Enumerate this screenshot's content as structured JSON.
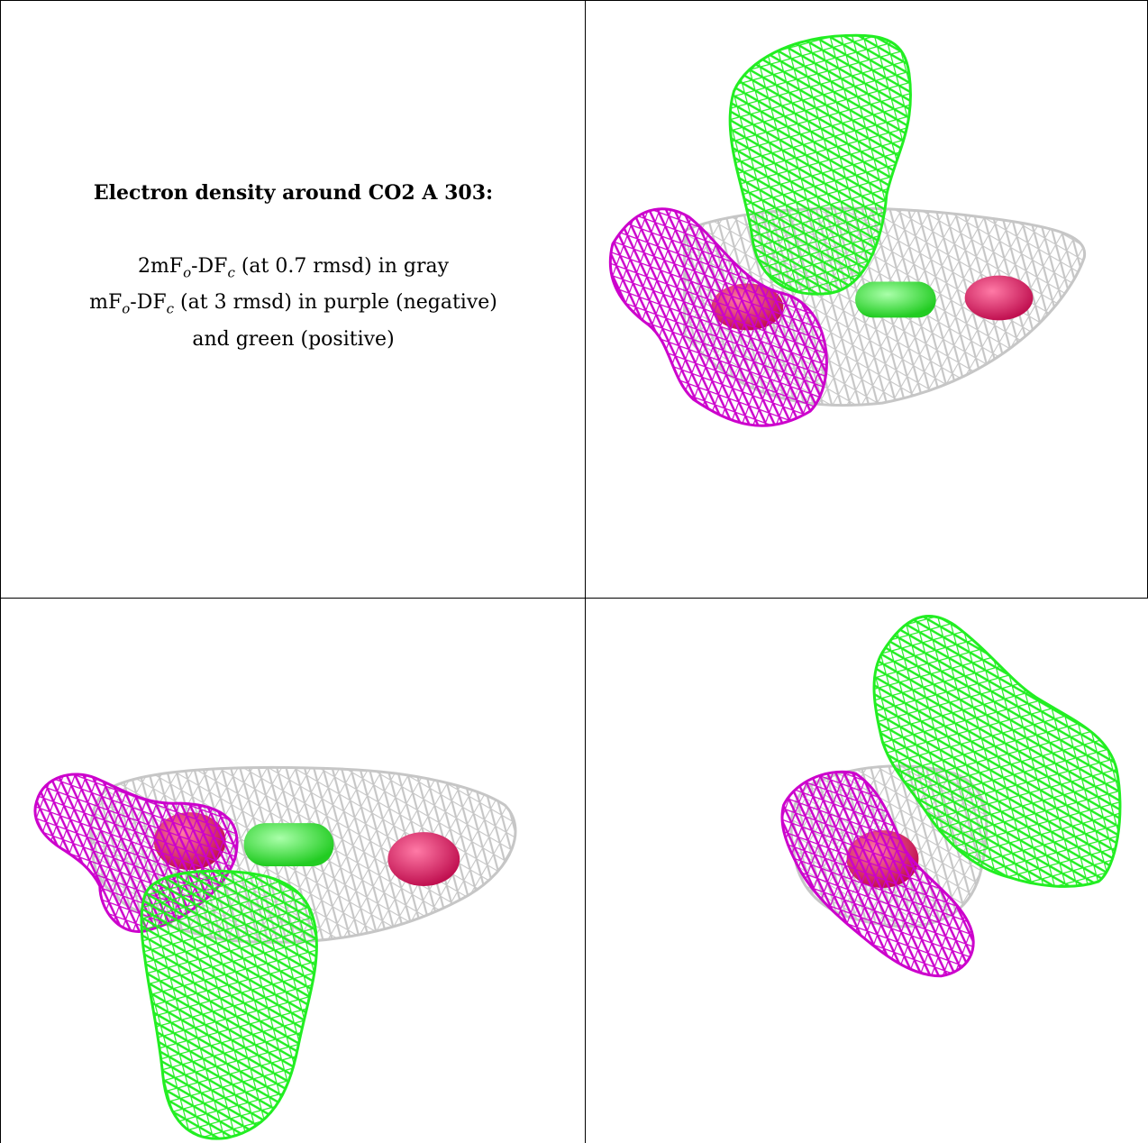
{
  "legend": {
    "title": "Electron density around CO2 A 303:",
    "line1_a": "2mF",
    "line1_sub1": "o",
    "line1_b": "-DF",
    "line1_sub2": "c",
    "line1_c": " (at 0.7 rmsd) in gray",
    "line2_a": "mF",
    "line2_sub1": "o",
    "line2_b": "-DF",
    "line2_sub2": "c",
    "line2_c": " (at 3 rmsd) in purple (negative)",
    "line3": "and green (positive)"
  },
  "colors": {
    "gray_mesh": "#c6c6c6",
    "purple_mesh": "#cc00cc",
    "green_mesh": "#22ee22",
    "oxygen_atom": "#e0306a",
    "carbon_atom": "#55ee55"
  }
}
